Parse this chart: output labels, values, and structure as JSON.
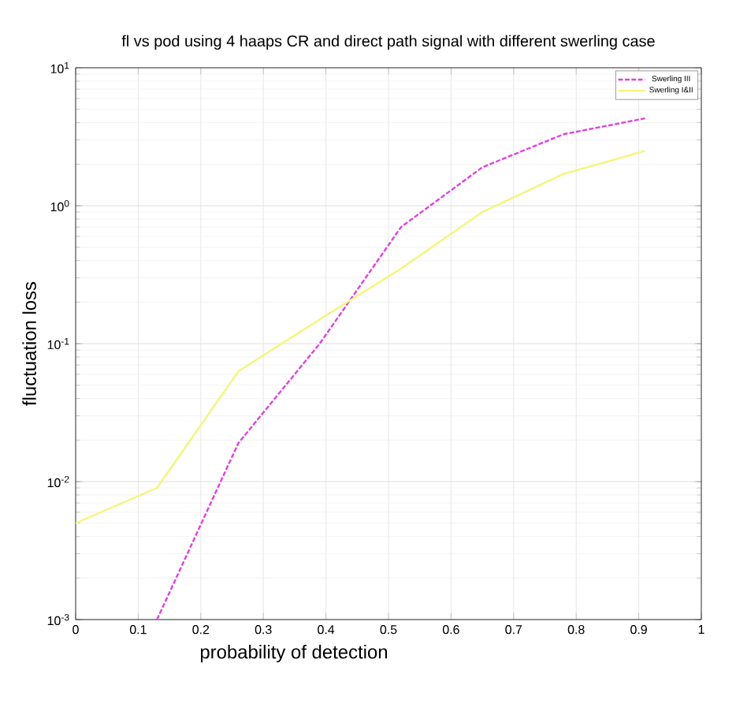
{
  "chart_data": {
    "type": "line",
    "title": "fl vs pod using 4 haaps CR and direct path signal with different swerling case",
    "xlabel": "probability of detection",
    "ylabel": "fluctuation loss",
    "log": "y",
    "grid": true,
    "legend": "top right",
    "xlim": [
      0,
      1
    ],
    "ylim": [
      0.001,
      10
    ],
    "xticks": [
      0,
      0.1,
      0.2,
      0.3,
      0.4,
      0.5,
      0.6,
      0.7,
      0.8,
      0.9,
      1
    ],
    "yticks": [
      {
        "value": 0.001,
        "label": "10$^{-3}$"
      },
      {
        "value": 0.01,
        "label": "10$^{-2}$"
      },
      {
        "value": 0.1,
        "label": "10$^{-1}$"
      },
      {
        "value": 1,
        "label": "10$^{0}$"
      },
      {
        "value": 10,
        "label": "10$^{1}$"
      }
    ],
    "series": [
      {
        "name": "Swerling III",
        "color": "#e040e0",
        "line_style": "dashed",
        "x": [
          0.13,
          0.26,
          0.39,
          0.52,
          0.65,
          0.78,
          0.91
        ],
        "values": [
          0.001,
          0.019,
          0.1,
          0.7,
          1.9,
          3.3,
          4.3
        ]
      },
      {
        "name": "Swerling I&II",
        "color": "#f5f57a",
        "line_style": "solid",
        "x": [
          0,
          0.13,
          0.26,
          0.39,
          0.52,
          0.65,
          0.78,
          0.91
        ],
        "values": [
          0.005,
          0.009,
          0.063,
          0.15,
          0.35,
          0.9,
          1.7,
          2.5
        ]
      }
    ]
  }
}
